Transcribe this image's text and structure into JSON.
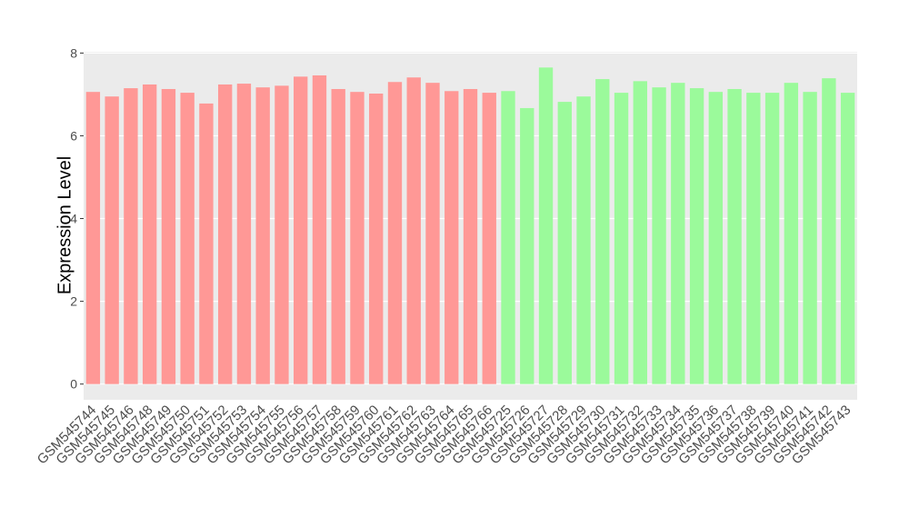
{
  "chart_data": {
    "type": "bar",
    "y_label": "Expression Level",
    "categories": [
      "GSM545744",
      "GSM545745",
      "GSM545746",
      "GSM545748",
      "GSM545749",
      "GSM545750",
      "GSM545751",
      "GSM545752",
      "GSM545753",
      "GSM545754",
      "GSM545755",
      "GSM545756",
      "GSM545757",
      "GSM545758",
      "GSM545759",
      "GSM545760",
      "GSM545761",
      "GSM545762",
      "GSM545763",
      "GSM545764",
      "GSM545765",
      "GSM545766",
      "GSM545725",
      "GSM545726",
      "GSM545727",
      "GSM545728",
      "GSM545729",
      "GSM545730",
      "GSM545731",
      "GSM545732",
      "GSM545733",
      "GSM545734",
      "GSM545735",
      "GSM545736",
      "GSM545737",
      "GSM545738",
      "GSM545739",
      "GSM545740",
      "GSM545741",
      "GSM545742",
      "GSM545743"
    ],
    "values": [
      7.06,
      6.95,
      7.15,
      7.24,
      7.13,
      7.04,
      6.78,
      7.24,
      7.26,
      7.17,
      7.21,
      7.43,
      7.46,
      7.13,
      7.06,
      7.02,
      7.3,
      7.41,
      7.28,
      7.08,
      7.13,
      7.04,
      7.08,
      6.67,
      7.65,
      6.82,
      6.95,
      7.37,
      7.04,
      7.32,
      7.17,
      7.28,
      7.15,
      7.06,
      7.13,
      7.04,
      7.04,
      7.28,
      7.06,
      7.39,
      7.04
    ],
    "colors": [
      "#ff9896",
      "#ff9896",
      "#ff9896",
      "#ff9896",
      "#ff9896",
      "#ff9896",
      "#ff9896",
      "#ff9896",
      "#ff9896",
      "#ff9896",
      "#ff9896",
      "#ff9896",
      "#ff9896",
      "#ff9896",
      "#ff9896",
      "#ff9896",
      "#ff9896",
      "#ff9896",
      "#ff9896",
      "#ff9896",
      "#ff9896",
      "#ff9896",
      "#9bfa9b",
      "#9bfa9b",
      "#9bfa9b",
      "#9bfa9b",
      "#9bfa9b",
      "#9bfa9b",
      "#9bfa9b",
      "#9bfa9b",
      "#9bfa9b",
      "#9bfa9b",
      "#9bfa9b",
      "#9bfa9b",
      "#9bfa9b",
      "#9bfa9b",
      "#9bfa9b",
      "#9bfa9b",
      "#9bfa9b",
      "#9bfa9b",
      "#9bfa9b"
    ],
    "ylim": [
      -0.38,
      8.03
    ],
    "yticks": [
      0,
      2,
      4,
      6,
      8
    ],
    "grid": true
  }
}
